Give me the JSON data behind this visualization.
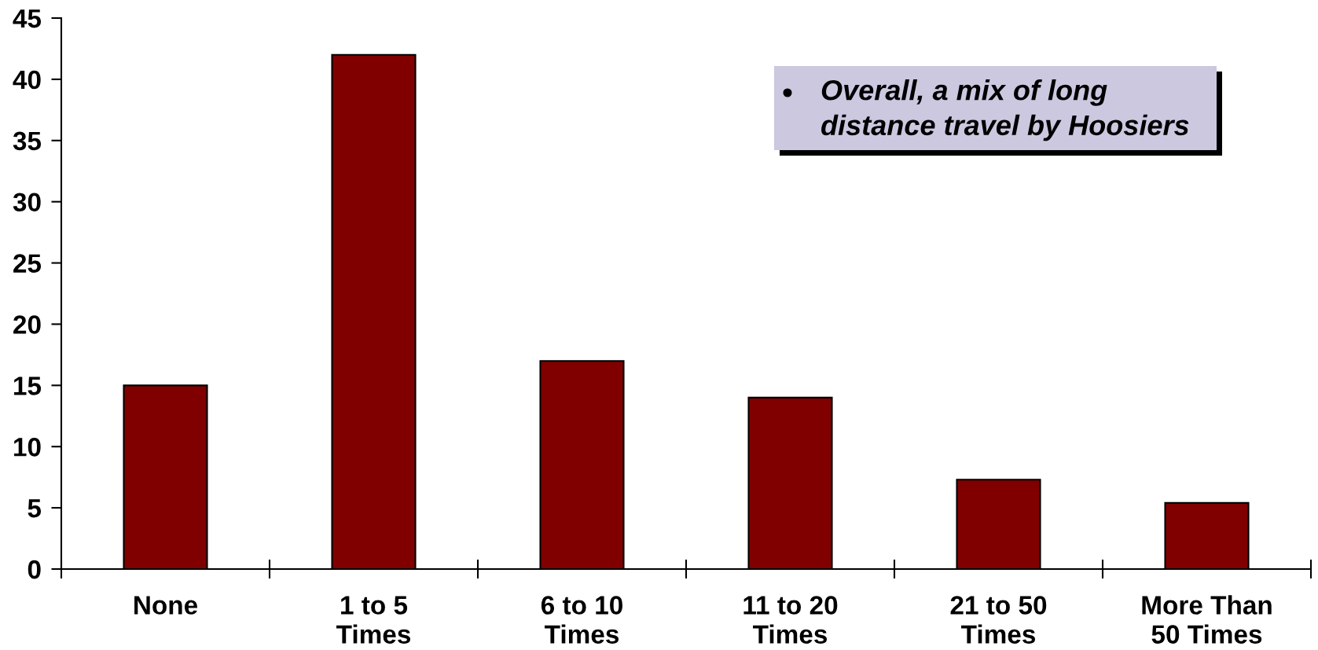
{
  "chart_data": {
    "type": "bar",
    "categories": [
      "None",
      "1 to 5\nTimes",
      "6 to 10\nTimes",
      "11 to 20\nTimes",
      "21 to 50\nTimes",
      "More Than\n50 Times"
    ],
    "values": [
      15,
      42,
      17,
      14,
      7.3,
      5.4
    ],
    "color": "#800000",
    "ylim": [
      0,
      45
    ],
    "yticks": [
      0,
      5,
      10,
      15,
      20,
      25,
      30,
      35,
      40,
      45
    ],
    "grid": false,
    "legend": false,
    "annotations": [
      "Overall, a mix of long\ndistance travel by Hoosiers"
    ]
  }
}
